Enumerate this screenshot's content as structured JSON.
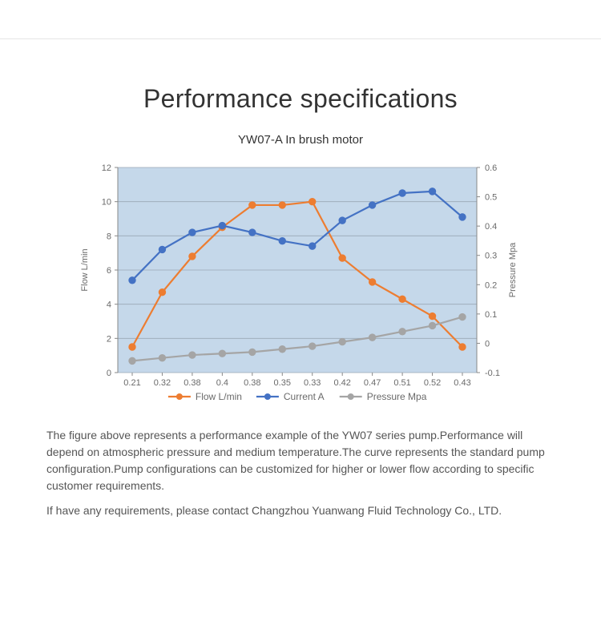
{
  "page": {
    "title": "Performance specifications",
    "subtitle": "YW07-A In brush motor"
  },
  "chart": {
    "type": "line",
    "plot_background": "#c5d8ea",
    "grid_color": "#9aa8b5",
    "axis_text_color": "#6a6a6a",
    "y_left": {
      "label": "Flow L/min",
      "min": 0,
      "max": 12,
      "ticks": [
        0,
        2,
        4,
        6,
        8,
        10,
        12
      ]
    },
    "y_right": {
      "label": "Pressure  Mpa",
      "min": -0.1,
      "max": 0.6,
      "ticks": [
        -0.1,
        0,
        0.1,
        0.2,
        0.3,
        0.4,
        0.5,
        0.6
      ]
    },
    "x_labels": [
      "0.21",
      "0.32",
      "0.38",
      "0.4",
      "0.38",
      "0.35",
      "0.33",
      "0.42",
      "0.47",
      "0.51",
      "0.52",
      "0.43"
    ],
    "series": [
      {
        "name": "Flow L/min",
        "color": "#ed7d31",
        "marker": "circle",
        "line_width": 2.2,
        "marker_size": 4.2,
        "axis": "left",
        "values": [
          1.5,
          4.7,
          6.8,
          8.5,
          9.8,
          9.8,
          10.0,
          6.7,
          5.3,
          4.3,
          3.3,
          1.5
        ]
      },
      {
        "name": "Current A",
        "color": "#4472c4",
        "marker": "circle",
        "line_width": 2.2,
        "marker_size": 4.2,
        "axis": "left",
        "values": [
          5.4,
          7.2,
          8.2,
          8.6,
          8.2,
          7.7,
          7.4,
          8.9,
          9.8,
          10.5,
          10.6,
          9.1
        ]
      },
      {
        "name": "Pressure Mpa",
        "color": "#a5a5a5",
        "marker": "circle",
        "line_width": 2.2,
        "marker_size": 4.2,
        "axis": "right",
        "values": [
          -0.06,
          -0.05,
          -0.04,
          -0.035,
          -0.03,
          -0.02,
          -0.01,
          0.005,
          0.02,
          0.04,
          0.06,
          0.09
        ]
      }
    ],
    "legend": {
      "items": [
        "Flow L/min",
        "Current A",
        "Pressure Mpa"
      ]
    }
  },
  "description": {
    "p1": "The figure above represents a performance example of the YW07 series pump.Performance will depend on atmospheric pressure and medium temperature.The curve represents the standard pump configuration.Pump configurations can be customized for higher or lower flow according to specific customer requirements.",
    "p2": "If have any requirements, please contact Changzhou Yuanwang Fluid Technology Co., LTD."
  }
}
